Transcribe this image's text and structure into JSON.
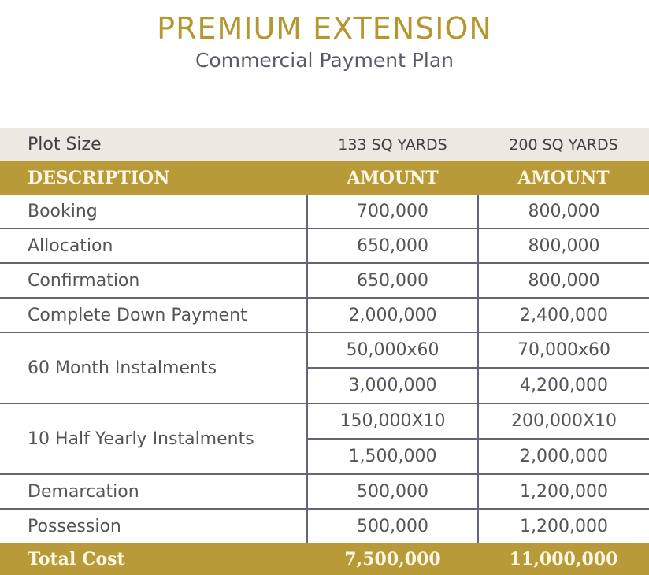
{
  "title": "PREMIUM EXTENSION",
  "subtitle": "Commercial Payment Plan",
  "plot_size": {
    "label": "Plot Size",
    "col1": "133 SQ YARDS",
    "col2": "200 SQ YARDS"
  },
  "header": {
    "description": "DESCRIPTION",
    "col1": "AMOUNT",
    "col2": "AMOUNT"
  },
  "rows": [
    {
      "label": "Booking",
      "col1": "700,000",
      "col2": "800,000"
    },
    {
      "label": "Allocation",
      "col1": "650,000",
      "col2": "800,000"
    },
    {
      "label": "Confirmation",
      "col1": "650,000",
      "col2": "800,000"
    },
    {
      "label": "Complete Down Payment",
      "col1": "2,000,000",
      "col2": "2,400,000"
    }
  ],
  "monthly": {
    "label": "60 Month Instalments",
    "col1_rate": "50,000x60",
    "col2_rate": "70,000x60",
    "col1_total": "3,000,000",
    "col2_total": "4,200,000"
  },
  "half_yearly": {
    "label": "10 Half Yearly Instalments",
    "col1_rate": "150,000X10",
    "col2_rate": "200,000X10",
    "col1_total": "1,500,000",
    "col2_total": "2,000,000"
  },
  "rows_after": [
    {
      "label": "Demarcation",
      "col1": "500,000",
      "col2": "1,200,000"
    },
    {
      "label": "Possession",
      "col1": "500,000",
      "col2": "1,200,000"
    }
  ],
  "total": {
    "label": "Total Cost",
    "col1": "7,500,000",
    "col2": "11,000,000"
  }
}
